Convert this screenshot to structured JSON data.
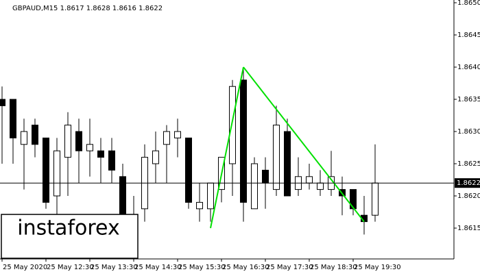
{
  "chart_data": {
    "type": "candlestick",
    "title": "GBPAUD,M15  1.8617 1.8628 1.8616 1.8622",
    "logo": "instaforex",
    "categories": [
      "25 May 2020",
      null,
      null,
      null,
      "25 May 12:30",
      null,
      null,
      null,
      "25 May 13:30",
      null,
      null,
      null,
      "25 May 14:30",
      null,
      null,
      null,
      "25 May 15:30",
      null,
      null,
      null,
      "25 May 16:30",
      null,
      null,
      null,
      "25 May 17:30",
      null,
      null,
      null,
      "25 May 18:30",
      null,
      null,
      null,
      "25 May 19:30",
      null,
      null
    ],
    "open": [
      1.8635,
      1.8635,
      1.8628,
      1.8631,
      1.8629,
      1.862,
      1.8626,
      1.863,
      1.8627,
      1.8627,
      1.8627,
      1.8623,
      1.8613,
      1.8618,
      1.8625,
      1.8628,
      1.8629,
      1.8629,
      1.8618,
      1.8618,
      1.8621,
      1.8625,
      1.8638,
      1.8618,
      1.8624,
      1.8621,
      1.863,
      1.8621,
      1.8622,
      1.8621,
      1.8621,
      1.8621,
      1.8621,
      1.8617,
      1.8617
    ],
    "high": [
      1.8637,
      1.8635,
      1.8632,
      1.8632,
      1.8629,
      1.8629,
      1.8633,
      1.8632,
      1.8632,
      1.8629,
      1.8629,
      1.8625,
      1.862,
      1.8628,
      1.863,
      1.8631,
      1.8632,
      1.8629,
      1.8622,
      1.8622,
      1.8626,
      1.8638,
      1.864,
      1.8626,
      1.8626,
      1.8634,
      1.8632,
      1.8626,
      1.8625,
      1.8624,
      1.8627,
      1.8623,
      1.8621,
      1.862,
      1.8628
    ],
    "low": [
      1.8625,
      1.8625,
      1.8621,
      1.8626,
      1.8618,
      1.8616,
      1.862,
      1.8622,
      1.8623,
      1.8622,
      1.8622,
      1.8611,
      1.8612,
      1.8616,
      1.8622,
      1.8622,
      1.8626,
      1.8618,
      1.8616,
      1.8616,
      1.8619,
      1.862,
      1.8616,
      1.8618,
      1.8618,
      1.862,
      1.862,
      1.862,
      1.8621,
      1.862,
      1.862,
      1.8617,
      1.8617,
      1.8614,
      1.8616
    ],
    "close": [
      1.8634,
      1.8629,
      1.863,
      1.8628,
      1.8619,
      1.8627,
      1.8631,
      1.8627,
      1.8628,
      1.8626,
      1.8624,
      1.8613,
      1.8617,
      1.8626,
      1.8627,
      1.863,
      1.863,
      1.8619,
      1.8619,
      1.8622,
      1.8626,
      1.8637,
      1.8619,
      1.8625,
      1.8622,
      1.8631,
      1.862,
      1.8623,
      1.8623,
      1.8622,
      1.8623,
      1.862,
      1.8618,
      1.8616,
      1.8622
    ],
    "up_color": "#ffffff",
    "down_color": "#000000",
    "ylim": [
      1.861,
      1.865
    ],
    "yticks": [
      {
        "value": 1.865,
        "label": "1.8650"
      },
      1.8645,
      {
        "value": 1.864,
        "label": "1.8640"
      },
      1.8635,
      {
        "value": 1.863,
        "label": "1.8630"
      },
      1.8625,
      {
        "value": 1.862,
        "label": "1.8620"
      },
      1.8615
    ],
    "last_price": 1.8622,
    "pattern": {
      "color": "#00e000",
      "points": [
        [
          19,
          1.8615
        ],
        [
          22,
          1.864
        ],
        [
          33,
          1.8616
        ]
      ]
    }
  }
}
